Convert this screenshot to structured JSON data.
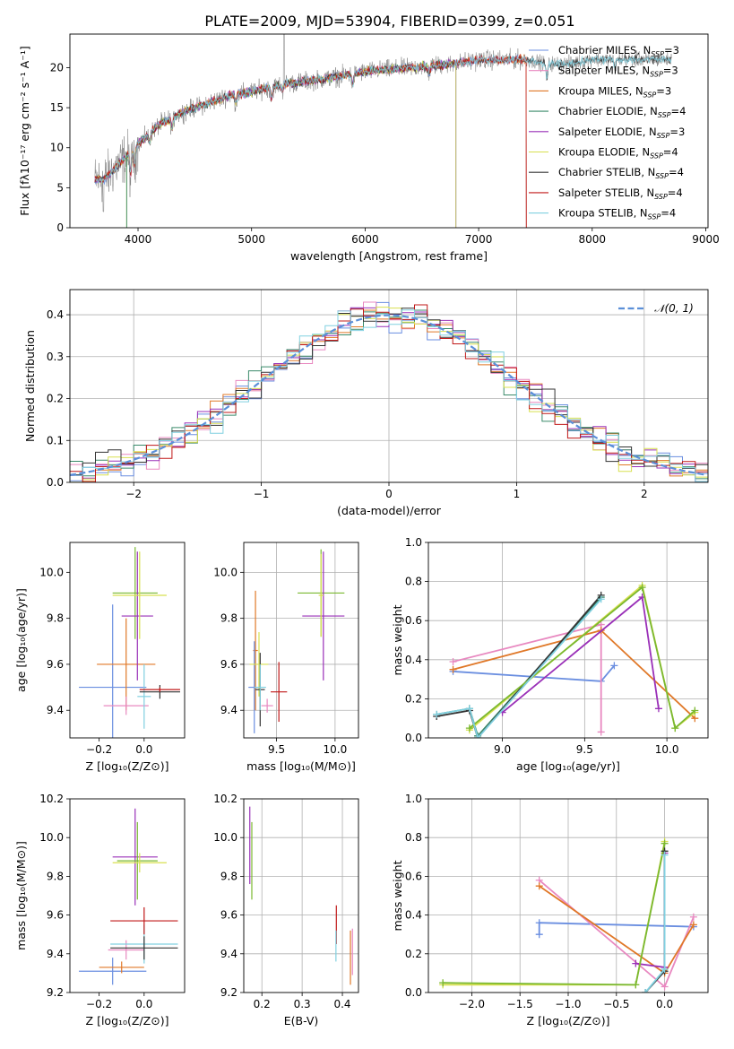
{
  "figure": {
    "title": "PLATE=2009, MJD=53904, FIBERID=0399, z=0.051"
  },
  "colors": {
    "chabrier_miles": "#6a8ee0",
    "salpeter_miles": "#e888c0",
    "kroupa_miles": "#e07828",
    "chabrier_elodie": "#3a8a6a",
    "salpeter_elodie": "#9a30b8",
    "kroupa_elodie": "#d8e050",
    "chabrier_stelib": "#333333",
    "salpeter_stelib": "#c01818",
    "kroupa_stelib": "#80d0e0",
    "data": "#7f7f7f",
    "normal": "#5b8fd8",
    "green": "#7ab830"
  },
  "chart_data": [
    {
      "id": "spectrum",
      "type": "line",
      "xlabel": "wavelength [Angstrom, rest frame]",
      "ylabel": "Flux [fλ10⁻¹⁷ erg cm⁻² s⁻¹ A⁻¹]",
      "xlim": [
        3400,
        9020
      ],
      "ylim": [
        0,
        24.2
      ],
      "xticks": [
        4000,
        5000,
        6000,
        7000,
        8000,
        9000
      ],
      "yticks": [
        0,
        5,
        10,
        15,
        20
      ],
      "legend": "top-right",
      "series_names": [
        "Chabrier MILES, N_SSP=3",
        "Salpeter MILES, N_SSP=3",
        "Kroupa MILES, N_SSP=3",
        "Chabrier ELODIE, N_SSP=4",
        "Salpeter ELODIE, N_SSP=3",
        "Kroupa ELODIE, N_SSP=4",
        "Chabrier STELIB, N_SSP=4",
        "Salpeter STELIB, N_SSP=4",
        "Kroupa STELIB, N_SSP=4"
      ],
      "continuum_x": [
        3620,
        3700,
        3800,
        3900,
        4000,
        4200,
        4400,
        4600,
        4800,
        5000,
        5300,
        5600,
        6000,
        6400,
        6800,
        7000,
        7200,
        7400,
        7600,
        7800,
        8000,
        8200,
        8400,
        8600,
        8700
      ],
      "continuum_y": [
        6,
        6,
        7.5,
        9,
        10.5,
        13,
        14.5,
        15.5,
        16.5,
        17,
        18,
        18.5,
        19.5,
        20,
        20.5,
        21,
        21,
        21,
        20.5,
        20.5,
        21,
        21,
        21,
        21,
        21
      ]
    },
    {
      "id": "residuals",
      "type": "histogram",
      "xlabel": "(data-model)/error",
      "ylabel": "Normed distribution",
      "xlim": [
        -2.5,
        2.5
      ],
      "ylim": [
        0,
        0.46
      ],
      "xticks": [
        -2,
        -1,
        0,
        1,
        2
      ],
      "yticks": [
        0.0,
        0.1,
        0.2,
        0.3,
        0.4
      ],
      "grid": true,
      "legend": "top-right",
      "normal_label": "𝒩(0, 1)",
      "bin_width": 0.1
    },
    {
      "id": "age_vs_Z",
      "type": "errorbar",
      "xlabel": "Z [log₁₀(Z/Z⊙)]",
      "ylabel": "age  [log₁₀(age/yr)]",
      "xlim": [
        -0.33,
        0.18
      ],
      "ylim": [
        9.28,
        10.13
      ],
      "xticks": [
        -0.2,
        0.0
      ],
      "yticks": [
        9.4,
        9.6,
        9.8,
        10.0
      ],
      "grid": false,
      "points": [
        {
          "s": "chabrier_miles",
          "x": -0.14,
          "y": 9.5,
          "ex": 0.15,
          "ey": 0.36
        },
        {
          "s": "kroupa_miles",
          "x": -0.08,
          "y": 9.6,
          "ex": 0.13,
          "ey": 0.2
        },
        {
          "s": "salpeter_miles",
          "x": -0.08,
          "y": 9.42,
          "ex": 0.1,
          "ey": 0.04
        },
        {
          "s": "green",
          "x": -0.04,
          "y": 9.91,
          "ex": 0.1,
          "ey": 0.2
        },
        {
          "s": "salpeter_elodie",
          "x": -0.03,
          "y": 9.81,
          "ex": 0.07,
          "ey": 0.28
        },
        {
          "s": "kroupa_elodie",
          "x": -0.02,
          "y": 9.9,
          "ex": 0.12,
          "ey": 0.19
        },
        {
          "s": "kroupa_stelib",
          "x": 0.0,
          "y": 9.46,
          "ex": 0.03,
          "ey": 0.14
        },
        {
          "s": "chabrier_stelib",
          "x": 0.07,
          "y": 9.48,
          "ex": 0.09,
          "ey": 0.03
        },
        {
          "s": "salpeter_stelib",
          "x": 0.07,
          "y": 9.49,
          "ex": 0.09,
          "ey": 0.01
        }
      ]
    },
    {
      "id": "age_vs_mass",
      "type": "errorbar",
      "xlabel": "mass [log₁₀(M/M⊙)]",
      "ylabel": "",
      "xlim": [
        9.22,
        10.2
      ],
      "ylim": [
        9.28,
        10.13
      ],
      "xticks": [
        9.5,
        10.0
      ],
      "yticks": [
        9.4,
        9.6,
        9.8,
        10.0
      ],
      "grid": true,
      "points": [
        {
          "s": "kroupa_miles",
          "x": 9.32,
          "y": 9.66,
          "ex": 0.02,
          "ey": 0.26
        },
        {
          "s": "chabrier_miles",
          "x": 9.31,
          "y": 9.5,
          "ex": 0.05,
          "ey": 0.2
        },
        {
          "s": "salpeter_miles",
          "x": 9.42,
          "y": 9.42,
          "ex": 0.05,
          "ey": 0.03
        },
        {
          "s": "kroupa_elodie",
          "x": 9.35,
          "y": 9.6,
          "ex": 0.08,
          "ey": 0.14
        },
        {
          "s": "chabrier_stelib",
          "x": 9.36,
          "y": 9.49,
          "ex": 0.04,
          "ey": 0.16
        },
        {
          "s": "kroupa_stelib",
          "x": 9.36,
          "y": 9.5,
          "ex": 0.05,
          "ey": 0.1
        },
        {
          "s": "salpeter_stelib",
          "x": 9.52,
          "y": 9.48,
          "ex": 0.07,
          "ey": 0.13
        },
        {
          "s": "green",
          "x": 9.88,
          "y": 9.91,
          "ex": 0.2,
          "ey": 0.19
        },
        {
          "s": "salpeter_elodie",
          "x": 9.9,
          "y": 9.81,
          "ex": 0.18,
          "ey": 0.28
        },
        {
          "s": "kroupa_elodie",
          "x": 9.88,
          "y": 9.9,
          "ex": 0.02,
          "ey": 0.18
        }
      ]
    },
    {
      "id": "weight_vs_age",
      "type": "line",
      "xlabel": "age  [log₁₀(age/yr)]",
      "ylabel": "mass weight",
      "xlim": [
        8.55,
        10.25
      ],
      "ylim": [
        0.0,
        1.0
      ],
      "xticks": [
        9.0,
        9.5,
        10.0
      ],
      "yticks": [
        0.0,
        0.2,
        0.4,
        0.6,
        0.8,
        1.0
      ],
      "grid": true,
      "series": [
        {
          "s": "chabrier_miles",
          "x": [
            8.7,
            9.6,
            9.68
          ],
          "y": [
            0.34,
            0.29,
            0.37
          ]
        },
        {
          "s": "salpeter_miles",
          "x": [
            8.7,
            9.6,
            9.6
          ],
          "y": [
            0.39,
            0.58,
            0.03
          ]
        },
        {
          "s": "kroupa_miles",
          "x": [
            8.7,
            9.6,
            10.17
          ],
          "y": [
            0.35,
            0.55,
            0.1
          ]
        },
        {
          "s": "chabrier_elodie",
          "x": [
            8.6,
            8.8,
            8.85,
            9.6
          ],
          "y": [
            0.12,
            0.15,
            0.01,
            0.72
          ]
        },
        {
          "s": "salpeter_elodie",
          "x": [
            9.0,
            9.85,
            9.95
          ],
          "y": [
            0.13,
            0.72,
            0.15
          ]
        },
        {
          "s": "kroupa_elodie",
          "x": [
            8.8,
            9.85,
            10.05,
            10.17
          ],
          "y": [
            0.04,
            0.78,
            0.05,
            0.13
          ]
        },
        {
          "s": "chabrier_stelib",
          "x": [
            8.6,
            8.8,
            8.85,
            9.6
          ],
          "y": [
            0.11,
            0.14,
            0.0,
            0.73
          ]
        },
        {
          "s": "green",
          "x": [
            8.8,
            9.85,
            10.05,
            10.17
          ],
          "y": [
            0.05,
            0.77,
            0.05,
            0.14
          ]
        },
        {
          "s": "kroupa_stelib",
          "x": [
            8.6,
            8.8,
            8.85,
            9.6
          ],
          "y": [
            0.12,
            0.15,
            0.0,
            0.71
          ]
        }
      ]
    },
    {
      "id": "mass_vs_Z",
      "type": "errorbar",
      "xlabel": "Z [log₁₀(Z/Z⊙)]",
      "ylabel": "mass [log₁₀(M/M⊙)]",
      "xlim": [
        -0.33,
        0.18
      ],
      "ylim": [
        9.2,
        10.2
      ],
      "xticks": [
        -0.2,
        0.0
      ],
      "yticks": [
        9.2,
        9.4,
        9.6,
        9.8,
        10.0,
        10.2
      ],
      "grid": false,
      "points": [
        {
          "s": "chabrier_miles",
          "x": -0.14,
          "y": 9.31,
          "ex": 0.15,
          "ey": 0.07
        },
        {
          "s": "kroupa_miles",
          "x": -0.1,
          "y": 9.33,
          "ex": 0.1,
          "ey": 0.03
        },
        {
          "s": "salpeter_miles",
          "x": -0.08,
          "y": 9.42,
          "ex": 0.08,
          "ey": 0.05
        },
        {
          "s": "salpeter_elodie",
          "x": -0.04,
          "y": 9.9,
          "ex": 0.1,
          "ey": 0.25
        },
        {
          "s": "green",
          "x": -0.03,
          "y": 9.88,
          "ex": 0.09,
          "ey": 0.2
        },
        {
          "s": "kroupa_elodie",
          "x": -0.02,
          "y": 9.87,
          "ex": 0.12,
          "ey": 0.05
        },
        {
          "s": "kroupa_stelib",
          "x": 0.0,
          "y": 9.45,
          "ex": 0.15,
          "ey": 0.1
        },
        {
          "s": "chabrier_stelib",
          "x": 0.0,
          "y": 9.43,
          "ex": 0.15,
          "ey": 0.06
        },
        {
          "s": "salpeter_stelib",
          "x": 0.0,
          "y": 9.57,
          "ex": 0.15,
          "ey": 0.07
        }
      ]
    },
    {
      "id": "mass_vs_ebv",
      "type": "errorbar",
      "xlabel": "E(B-V)",
      "ylabel": "",
      "xlim": [
        0.155,
        0.44
      ],
      "ylim": [
        9.2,
        10.2
      ],
      "xticks": [
        0.2,
        0.3,
        0.4
      ],
      "yticks": [
        9.2,
        9.4,
        9.6,
        9.8,
        10.0,
        10.2
      ],
      "grid": true,
      "points": [
        {
          "s": "salpeter_elodie",
          "x": 0.17,
          "y": 9.96,
          "ex": 0.0,
          "ey": 0.2
        },
        {
          "s": "green",
          "x": 0.175,
          "y": 9.88,
          "ex": 0.0,
          "ey": 0.2
        },
        {
          "s": "salpeter_stelib",
          "x": 0.385,
          "y": 9.55,
          "ex": 0.0,
          "ey": 0.1
        },
        {
          "s": "kroupa_stelib",
          "x": 0.384,
          "y": 9.44,
          "ex": 0.0,
          "ey": 0.08
        },
        {
          "s": "kroupa_miles",
          "x": 0.42,
          "y": 9.38,
          "ex": 0.0,
          "ey": 0.14
        },
        {
          "s": "salpeter_miles",
          "x": 0.425,
          "y": 9.41,
          "ex": 0.0,
          "ey": 0.12
        }
      ]
    },
    {
      "id": "weight_vs_Z",
      "type": "line",
      "xlabel": "Z [log₁₀(Z/Z⊙)]",
      "ylabel": "mass weight",
      "xlim": [
        -2.45,
        0.45
      ],
      "ylim": [
        0.0,
        1.0
      ],
      "xticks": [
        -2.0,
        -1.5,
        -1.0,
        -0.5,
        0.0
      ],
      "yticks": [
        0.0,
        0.2,
        0.4,
        0.6,
        0.8,
        1.0
      ],
      "grid": true,
      "series": [
        {
          "s": "chabrier_miles",
          "x": [
            -1.3,
            -1.3,
            0.3
          ],
          "y": [
            0.3,
            0.36,
            0.34
          ]
        },
        {
          "s": "salpeter_miles",
          "x": [
            -1.3,
            0.0,
            0.3
          ],
          "y": [
            0.58,
            0.03,
            0.39
          ]
        },
        {
          "s": "kroupa_miles",
          "x": [
            -1.3,
            0.0,
            0.3
          ],
          "y": [
            0.55,
            0.1,
            0.35
          ]
        },
        {
          "s": "salpeter_elodie",
          "x": [
            -0.3,
            0.0,
            0.0
          ],
          "y": [
            0.15,
            0.13,
            0.72
          ]
        },
        {
          "s": "kroupa_elodie",
          "x": [
            -2.3,
            -0.3,
            0.0
          ],
          "y": [
            0.04,
            0.04,
            0.78
          ]
        },
        {
          "s": "green",
          "x": [
            -2.3,
            -0.3,
            0.0
          ],
          "y": [
            0.05,
            0.04,
            0.77
          ]
        },
        {
          "s": "chabrier_stelib",
          "x": [
            -0.2,
            0.0,
            0.0
          ],
          "y": [
            0.0,
            0.11,
            0.73
          ]
        },
        {
          "s": "kroupa_stelib",
          "x": [
            -0.2,
            0.0,
            0.0
          ],
          "y": [
            0.0,
            0.12,
            0.71
          ]
        }
      ]
    }
  ]
}
